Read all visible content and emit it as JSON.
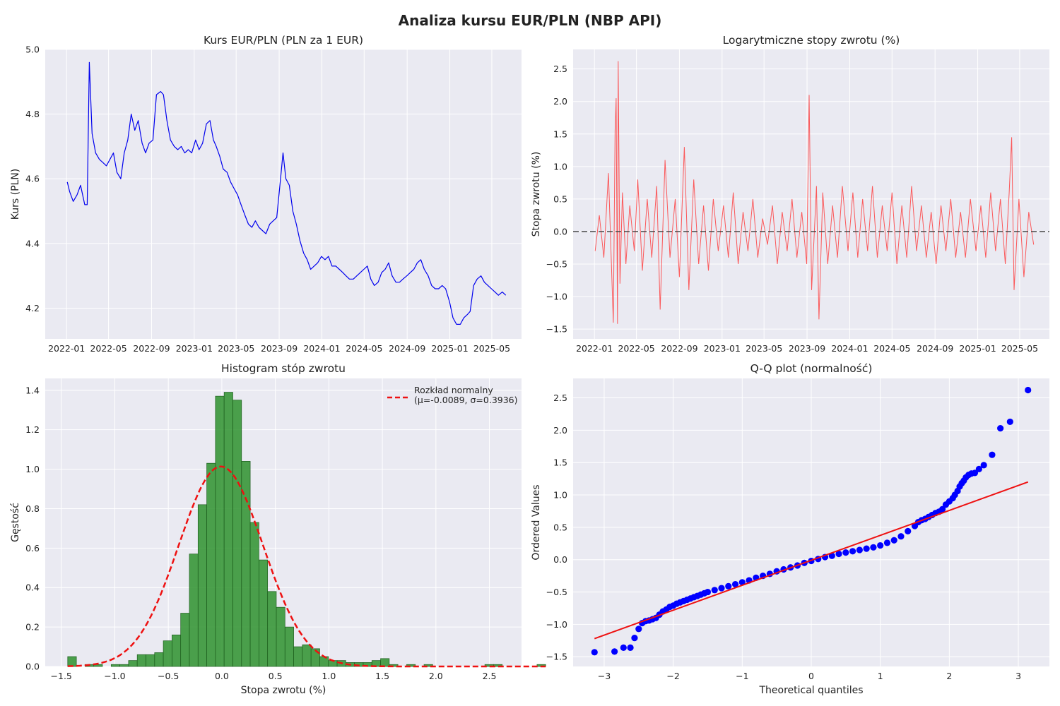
{
  "figure": {
    "title": "Analiza kursu EUR/PLN (NBP API)",
    "colors": {
      "panel_bg": "#eaeaf2",
      "grid": "#ffffff",
      "rate_line": "#0000ee",
      "returns_line": "#ff3333",
      "hist_bar": "#2e922e",
      "normal_curve": "#ee1111",
      "qq_points": "#0000ff",
      "qq_line": "#ee1111"
    }
  },
  "chart_data": [
    {
      "type": "line",
      "title": "Kurs EUR/PLN (PLN za 1 EUR)",
      "xlabel": "",
      "ylabel": "Kurs (PLN)",
      "xticks": [
        "2022-01",
        "2022-05",
        "2022-09",
        "2023-01",
        "2023-05",
        "2023-09",
        "2024-01",
        "2024-05",
        "2024-09",
        "2025-01",
        "2025-05"
      ],
      "yticks": [
        4.2,
        4.4,
        4.6,
        4.8,
        5.0
      ],
      "xlim": [
        "2021-11-01",
        "2025-07-25"
      ],
      "ylim": [
        4.105,
        5.0
      ],
      "grid": true,
      "series": [
        {
          "x": [
            "2022-01-03",
            "2022-01-10",
            "2022-01-20",
            "2022-01-31",
            "2022-02-10",
            "2022-02-22",
            "2022-03-01",
            "2022-03-07",
            "2022-03-15",
            "2022-03-25",
            "2022-04-05",
            "2022-04-15",
            "2022-04-25",
            "2022-05-05",
            "2022-05-15",
            "2022-05-25",
            "2022-06-05",
            "2022-06-15",
            "2022-06-25",
            "2022-07-05",
            "2022-07-15",
            "2022-07-25",
            "2022-08-05",
            "2022-08-15",
            "2022-08-25",
            "2022-09-05",
            "2022-09-15",
            "2022-09-27",
            "2022-10-05",
            "2022-10-15",
            "2022-10-25",
            "2022-11-05",
            "2022-11-15",
            "2022-11-25",
            "2022-12-05",
            "2022-12-15",
            "2022-12-25",
            "2023-01-05",
            "2023-01-15",
            "2023-01-25",
            "2023-02-05",
            "2023-02-15",
            "2023-02-25",
            "2023-03-05",
            "2023-03-15",
            "2023-03-25",
            "2023-04-05",
            "2023-04-15",
            "2023-04-25",
            "2023-05-05",
            "2023-05-15",
            "2023-05-25",
            "2023-06-05",
            "2023-06-15",
            "2023-06-25",
            "2023-07-05",
            "2023-07-15",
            "2023-07-25",
            "2023-08-05",
            "2023-08-15",
            "2023-08-25",
            "2023-09-05",
            "2023-09-12",
            "2023-09-20",
            "2023-09-30",
            "2023-10-10",
            "2023-10-20",
            "2023-10-30",
            "2023-11-10",
            "2023-11-20",
            "2023-11-30",
            "2023-12-10",
            "2023-12-20",
            "2023-12-31",
            "2024-01-10",
            "2024-01-20",
            "2024-01-30",
            "2024-02-10",
            "2024-02-20",
            "2024-03-01",
            "2024-03-10",
            "2024-03-20",
            "2024-03-31",
            "2024-04-10",
            "2024-04-20",
            "2024-04-30",
            "2024-05-10",
            "2024-05-20",
            "2024-05-30",
            "2024-06-10",
            "2024-06-20",
            "2024-06-30",
            "2024-07-10",
            "2024-07-20",
            "2024-07-31",
            "2024-08-10",
            "2024-08-20",
            "2024-08-31",
            "2024-09-10",
            "2024-09-20",
            "2024-09-30",
            "2024-10-10",
            "2024-10-20",
            "2024-10-31",
            "2024-11-10",
            "2024-11-20",
            "2024-11-30",
            "2024-12-10",
            "2024-12-20",
            "2024-12-31",
            "2025-01-10",
            "2025-01-20",
            "2025-01-31",
            "2025-02-10",
            "2025-02-20",
            "2025-02-28",
            "2025-03-10",
            "2025-03-20",
            "2025-03-31",
            "2025-04-10",
            "2025-04-20",
            "2025-04-30",
            "2025-05-10",
            "2025-05-20",
            "2025-05-31",
            "2025-06-10"
          ],
          "values": [
            4.59,
            4.56,
            4.53,
            4.55,
            4.58,
            4.52,
            4.52,
            4.96,
            4.74,
            4.68,
            4.66,
            4.65,
            4.64,
            4.66,
            4.68,
            4.62,
            4.6,
            4.68,
            4.72,
            4.8,
            4.75,
            4.78,
            4.71,
            4.68,
            4.71,
            4.72,
            4.86,
            4.87,
            4.86,
            4.78,
            4.72,
            4.7,
            4.69,
            4.7,
            4.68,
            4.69,
            4.68,
            4.72,
            4.69,
            4.71,
            4.77,
            4.78,
            4.72,
            4.7,
            4.67,
            4.63,
            4.62,
            4.59,
            4.57,
            4.55,
            4.52,
            4.49,
            4.46,
            4.45,
            4.47,
            4.45,
            4.44,
            4.43,
            4.46,
            4.47,
            4.48,
            4.6,
            4.68,
            4.6,
            4.58,
            4.5,
            4.46,
            4.41,
            4.37,
            4.35,
            4.32,
            4.33,
            4.34,
            4.36,
            4.35,
            4.36,
            4.33,
            4.33,
            4.32,
            4.31,
            4.3,
            4.29,
            4.29,
            4.3,
            4.31,
            4.32,
            4.33,
            4.29,
            4.27,
            4.28,
            4.31,
            4.32,
            4.34,
            4.3,
            4.28,
            4.28,
            4.29,
            4.3,
            4.31,
            4.32,
            4.34,
            4.35,
            4.32,
            4.3,
            4.27,
            4.26,
            4.26,
            4.27,
            4.26,
            4.22,
            4.17,
            4.15,
            4.15,
            4.17,
            4.18,
            4.19,
            4.27,
            4.29,
            4.3,
            4.28,
            4.27,
            4.26,
            4.25,
            4.24,
            4.25,
            4.24
          ]
        }
      ]
    },
    {
      "type": "line",
      "title": "Logarytmiczne stopy zwrotu (%)",
      "xlabel": "",
      "ylabel": "Stopa zwrotu (%)",
      "xticks": [
        "2022-01",
        "2022-05",
        "2022-09",
        "2023-01",
        "2023-05",
        "2023-09",
        "2024-01",
        "2024-05",
        "2024-09",
        "2025-01",
        "2025-05"
      ],
      "yticks": [
        -1.5,
        -1.0,
        -0.5,
        0.0,
        0.5,
        1.0,
        1.5,
        2.0,
        2.5
      ],
      "xlim": [
        "2021-11-01",
        "2025-07-25"
      ],
      "ylim": [
        -1.65,
        2.8
      ],
      "reference_line": 0.0,
      "grid": true,
      "series": [
        {
          "x": [
            "2022-01-03",
            "2022-01-15",
            "2022-01-28",
            "2022-02-10",
            "2022-02-24",
            "2022-03-01",
            "2022-03-04",
            "2022-03-08",
            "2022-03-10",
            "2022-03-15",
            "2022-03-22",
            "2022-04-01",
            "2022-04-12",
            "2022-04-25",
            "2022-05-05",
            "2022-05-18",
            "2022-06-01",
            "2022-06-14",
            "2022-06-28",
            "2022-07-08",
            "2022-07-22",
            "2022-08-05",
            "2022-08-20",
            "2022-09-01",
            "2022-09-15",
            "2022-09-28",
            "2022-10-12",
            "2022-10-26",
            "2022-11-09",
            "2022-11-23",
            "2022-12-07",
            "2022-12-21",
            "2023-01-05",
            "2023-01-19",
            "2023-02-02",
            "2023-02-16",
            "2023-03-02",
            "2023-03-16",
            "2023-03-30",
            "2023-04-13",
            "2023-04-27",
            "2023-05-11",
            "2023-05-25",
            "2023-06-08",
            "2023-06-22",
            "2023-07-06",
            "2023-07-20",
            "2023-08-03",
            "2023-08-17",
            "2023-08-31",
            "2023-09-07",
            "2023-09-14",
            "2023-09-28",
            "2023-10-05",
            "2023-10-16",
            "2023-10-30",
            "2023-11-13",
            "2023-11-27",
            "2023-12-11",
            "2023-12-27",
            "2024-01-10",
            "2024-01-24",
            "2024-02-07",
            "2024-02-21",
            "2024-03-06",
            "2024-03-20",
            "2024-04-03",
            "2024-04-17",
            "2024-05-01",
            "2024-05-15",
            "2024-05-29",
            "2024-06-12",
            "2024-06-26",
            "2024-07-10",
            "2024-07-24",
            "2024-08-07",
            "2024-08-21",
            "2024-09-04",
            "2024-09-18",
            "2024-10-02",
            "2024-10-16",
            "2024-10-30",
            "2024-11-13",
            "2024-11-27",
            "2024-12-11",
            "2024-12-27",
            "2025-01-10",
            "2025-01-24",
            "2025-02-07",
            "2025-02-21",
            "2025-03-07",
            "2025-03-21",
            "2025-04-01",
            "2025-04-08",
            "2025-04-15",
            "2025-04-29",
            "2025-05-13",
            "2025-05-27",
            "2025-06-10"
          ],
          "values": [
            -0.3,
            0.25,
            -0.4,
            0.9,
            -1.4,
            1.55,
            2.05,
            -1.42,
            2.62,
            -0.8,
            0.6,
            -0.5,
            0.4,
            -0.3,
            0.8,
            -0.6,
            0.5,
            -0.4,
            0.7,
            -1.2,
            1.1,
            -0.4,
            0.5,
            -0.7,
            1.3,
            -0.9,
            0.8,
            -0.5,
            0.4,
            -0.6,
            0.5,
            -0.3,
            0.4,
            -0.4,
            0.6,
            -0.5,
            0.3,
            -0.3,
            0.5,
            -0.4,
            0.2,
            -0.2,
            0.4,
            -0.5,
            0.3,
            -0.3,
            0.5,
            -0.4,
            0.3,
            -0.5,
            2.1,
            -0.9,
            0.7,
            -1.35,
            0.6,
            -0.5,
            0.4,
            -0.4,
            0.7,
            -0.3,
            0.6,
            -0.4,
            0.5,
            -0.3,
            0.7,
            -0.4,
            0.4,
            -0.3,
            0.6,
            -0.5,
            0.4,
            -0.4,
            0.7,
            -0.3,
            0.4,
            -0.4,
            0.3,
            -0.5,
            0.4,
            -0.3,
            0.5,
            -0.4,
            0.3,
            -0.4,
            0.5,
            -0.3,
            0.4,
            -0.4,
            0.6,
            -0.3,
            0.5,
            -0.5,
            0.6,
            1.45,
            -0.9,
            0.5,
            -0.7,
            0.3,
            -0.2
          ]
        }
      ]
    },
    {
      "type": "bar",
      "title": "Histogram stóp zwrotu",
      "xlabel": "Stopa zwrotu (%)",
      "ylabel": "Gęstość",
      "xticks": [
        -1.5,
        -1.0,
        -0.5,
        0.0,
        0.5,
        1.0,
        1.5,
        2.0,
        2.5
      ],
      "yticks": [
        0.0,
        0.2,
        0.4,
        0.6,
        0.8,
        1.0,
        1.2,
        1.4
      ],
      "xlim": [
        -1.65,
        2.8
      ],
      "ylim": [
        0,
        1.46
      ],
      "grid": true,
      "bin_start": -1.44,
      "bin_width": 0.0812,
      "density": [
        0.05,
        0.0,
        0.01,
        0.01,
        0.0,
        0.01,
        0.01,
        0.03,
        0.06,
        0.06,
        0.07,
        0.13,
        0.16,
        0.27,
        0.57,
        0.82,
        1.03,
        1.37,
        1.39,
        1.35,
        1.04,
        0.73,
        0.54,
        0.38,
        0.3,
        0.2,
        0.1,
        0.11,
        0.09,
        0.05,
        0.03,
        0.03,
        0.02,
        0.02,
        0.02,
        0.03,
        0.04,
        0.01,
        0.0,
        0.01,
        0.0,
        0.01,
        0.0,
        0.0,
        0.0,
        0.0,
        0.0,
        0.0,
        0.01,
        0.01,
        0.0,
        0.0,
        0.0,
        0.0,
        0.01
      ],
      "normal_fit": {
        "mu": -0.0089,
        "sigma": 0.3936
      },
      "legend": {
        "label_line1": "Rozkład normalny",
        "label_line2": "(μ=-0.0089, σ=0.3936)",
        "position": "top-right"
      }
    },
    {
      "type": "scatter",
      "title": "Q-Q plot (normalność)",
      "xlabel": "Theoretical quantiles",
      "ylabel": "Ordered Values",
      "xticks": [
        -3,
        -2,
        -1,
        0,
        1,
        2,
        3
      ],
      "yticks": [
        -1.5,
        -1.0,
        -0.5,
        0.0,
        0.5,
        1.0,
        1.5,
        2.0,
        2.5
      ],
      "xlim": [
        -3.45,
        3.45
      ],
      "ylim": [
        -1.65,
        2.8
      ],
      "grid": true,
      "fit_line": {
        "x": [
          -3.14,
          3.14
        ],
        "y": [
          -1.22,
          1.2
        ]
      },
      "points": {
        "x": [
          -3.14,
          -2.85,
          -2.72,
          -2.62,
          -2.56,
          -2.5,
          -2.45,
          -2.4,
          -2.35,
          -2.3,
          -2.25,
          -2.2,
          -2.15,
          -2.1,
          -2.05,
          -2.0,
          -1.95,
          -1.9,
          -1.85,
          -1.8,
          -1.75,
          -1.7,
          -1.65,
          -1.6,
          -1.55,
          -1.5,
          -1.4,
          -1.3,
          -1.2,
          -1.1,
          -1.0,
          -0.9,
          -0.8,
          -0.7,
          -0.6,
          -0.5,
          -0.4,
          -0.3,
          -0.2,
          -0.1,
          0.0,
          0.1,
          0.2,
          0.3,
          0.4,
          0.5,
          0.6,
          0.7,
          0.8,
          0.9,
          1.0,
          1.1,
          1.2,
          1.3,
          1.4,
          1.5,
          1.55,
          1.6,
          1.65,
          1.7,
          1.75,
          1.8,
          1.85,
          1.9,
          1.95,
          2.0,
          2.05,
          2.08,
          2.12,
          2.15,
          2.18,
          2.21,
          2.24,
          2.28,
          2.32,
          2.37,
          2.43,
          2.5,
          2.62,
          2.74,
          2.88,
          3.14
        ],
        "y": [
          -1.43,
          -1.42,
          -1.36,
          -1.36,
          -1.21,
          -1.07,
          -0.98,
          -0.95,
          -0.94,
          -0.92,
          -0.9,
          -0.85,
          -0.8,
          -0.77,
          -0.73,
          -0.71,
          -0.68,
          -0.66,
          -0.64,
          -0.62,
          -0.6,
          -0.58,
          -0.56,
          -0.54,
          -0.52,
          -0.5,
          -0.47,
          -0.44,
          -0.41,
          -0.38,
          -0.35,
          -0.32,
          -0.28,
          -0.25,
          -0.22,
          -0.18,
          -0.15,
          -0.12,
          -0.09,
          -0.05,
          -0.02,
          0.01,
          0.04,
          0.06,
          0.09,
          0.11,
          0.13,
          0.15,
          0.17,
          0.19,
          0.22,
          0.26,
          0.3,
          0.36,
          0.44,
          0.52,
          0.58,
          0.61,
          0.63,
          0.66,
          0.69,
          0.72,
          0.74,
          0.78,
          0.85,
          0.9,
          0.95,
          1.0,
          1.06,
          1.13,
          1.18,
          1.22,
          1.27,
          1.31,
          1.33,
          1.34,
          1.4,
          1.46,
          1.62,
          2.03,
          2.13,
          2.62
        ]
      }
    }
  ]
}
